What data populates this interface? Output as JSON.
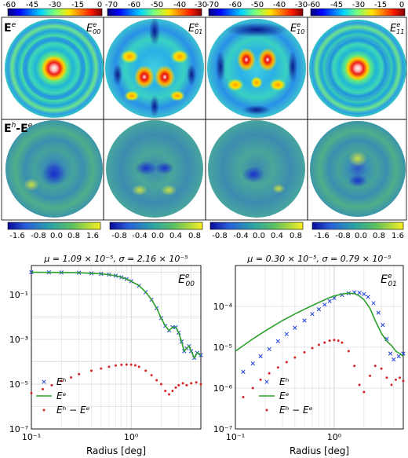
{
  "maps": {
    "top_colorbar_ticks": [
      [
        "-60",
        "-45",
        "-30",
        "-15",
        "0"
      ],
      [
        "-70",
        "-60",
        "-50",
        "-40",
        "-30"
      ],
      [
        "-70",
        "-60",
        "-50",
        "-40",
        "-30"
      ],
      [
        "-60",
        "-45",
        "-30",
        "-15",
        "0"
      ]
    ],
    "bottom_colorbar_ticks": [
      [
        "-1.6",
        "-0.8",
        "0.0",
        "0.8",
        "1.6"
      ],
      [
        "-0.8",
        "-0.4",
        "0.0",
        "0.4",
        "0.8"
      ],
      [
        "-0.8",
        "-0.4",
        "0.0",
        "0.4",
        "0.8"
      ],
      [
        "-1.6",
        "-0.8",
        "0.0",
        "0.8",
        "1.6"
      ]
    ],
    "column_labels": [
      "E00e",
      "E01e",
      "E10e",
      "E11e"
    ],
    "row_labels": {
      "top": "Ee",
      "bottom": "Eh-Ee"
    }
  },
  "chart_data": [
    {
      "type": "scatter",
      "title": "μ = 1.09 × 10⁻⁵, σ = 2.16 × 10⁻⁵",
      "panel_label": "E00e",
      "xlabel": "Radius [deg]",
      "ylabel": "",
      "x_scale": "log",
      "y_scale": "log",
      "xlim": [
        0.1,
        5
      ],
      "ylim": [
        1e-07,
        2
      ],
      "x_ticks": [
        "10⁻¹",
        "10⁰"
      ],
      "y_ticks": [
        "10⁻⁷",
        "10⁻⁵",
        "10⁻³",
        "10⁻¹"
      ],
      "legend": [
        "Eʰ",
        "Eᵉ",
        "Eʰ − Eᵉ"
      ],
      "legend_position": "bottom-left",
      "series": [
        {
          "name": "Eʰ",
          "marker": "x",
          "color": "#1f3fd8",
          "x": [
            0.1,
            0.15,
            0.2,
            0.3,
            0.4,
            0.5,
            0.6,
            0.7,
            0.8,
            0.9,
            1.0,
            1.2,
            1.4,
            1.6,
            1.8,
            2.0,
            2.2,
            2.4,
            2.6,
            2.8,
            3.0,
            3.2,
            3.4,
            3.6,
            3.8,
            4.0,
            4.3,
            4.6,
            5.0
          ],
          "y": [
            1.0,
            0.99,
            0.98,
            0.95,
            0.9,
            0.85,
            0.78,
            0.7,
            0.6,
            0.5,
            0.4,
            0.25,
            0.13,
            0.06,
            0.025,
            0.009,
            0.004,
            0.0025,
            0.0035,
            0.0035,
            0.002,
            0.0008,
            0.0003,
            0.0004,
            0.0005,
            0.0003,
            0.00015,
            0.00025,
            0.0002
          ]
        },
        {
          "name": "Eᵉ",
          "marker": "line",
          "color": "#2ca02c",
          "x": [
            0.1,
            0.15,
            0.2,
            0.3,
            0.4,
            0.5,
            0.6,
            0.7,
            0.8,
            0.9,
            1.0,
            1.2,
            1.4,
            1.6,
            1.8,
            2.0,
            2.2,
            2.4,
            2.6,
            2.8,
            3.0,
            3.2,
            3.4,
            3.6,
            3.8,
            4.0,
            4.3,
            4.6,
            5.0
          ],
          "y": [
            1.0,
            0.99,
            0.98,
            0.95,
            0.9,
            0.85,
            0.78,
            0.7,
            0.6,
            0.5,
            0.4,
            0.25,
            0.13,
            0.06,
            0.025,
            0.009,
            0.004,
            0.0025,
            0.0035,
            0.0035,
            0.002,
            0.0008,
            0.0003,
            0.0004,
            0.0005,
            0.0003,
            0.00015,
            0.00025,
            0.0002
          ]
        },
        {
          "name": "Eʰ − Eᵉ",
          "marker": "dot",
          "color": "#d62728",
          "x": [
            0.1,
            0.13,
            0.16,
            0.2,
            0.25,
            0.3,
            0.4,
            0.5,
            0.6,
            0.7,
            0.8,
            0.9,
            1.0,
            1.1,
            1.2,
            1.4,
            1.6,
            1.8,
            2.0,
            2.2,
            2.4,
            2.6,
            2.8,
            3.0,
            3.3,
            3.6,
            4.0,
            4.5,
            5.0
          ],
          "y": [
            4e-06,
            6e-06,
            9e-06,
            1.4e-05,
            2e-05,
            2.8e-05,
            4e-05,
            5e-05,
            6e-05,
            6.8e-05,
            7.3e-05,
            7.5e-05,
            7.4e-05,
            7e-05,
            6e-05,
            4e-05,
            2.5e-05,
            1.5e-05,
            1e-05,
            5e-06,
            3.5e-06,
            5e-06,
            7e-06,
            9e-06,
            1.1e-05,
            9e-06,
            1.1e-05,
            1.2e-05,
            1e-05
          ]
        }
      ]
    },
    {
      "type": "scatter",
      "title": "μ = 0.30 × 10⁻⁵, σ = 0.79 × 10⁻⁵",
      "panel_label": "E01e",
      "xlabel": "Radius [deg]",
      "ylabel": "",
      "x_scale": "log",
      "y_scale": "log",
      "xlim": [
        0.1,
        5
      ],
      "ylim": [
        1e-07,
        0.001
      ],
      "x_ticks": [
        "10⁻¹",
        "10⁰"
      ],
      "y_ticks": [
        "10⁻⁷",
        "10⁻⁶",
        "10⁻⁵",
        "10⁻⁴"
      ],
      "legend": [
        "Eʰ",
        "Eᵉ",
        "Eʰ − Eᵉ"
      ],
      "legend_position": "bottom-right",
      "series": [
        {
          "name": "Eʰ",
          "marker": "x",
          "color": "#1f3fd8",
          "x": [
            0.12,
            0.15,
            0.18,
            0.22,
            0.27,
            0.33,
            0.4,
            0.5,
            0.6,
            0.7,
            0.8,
            0.9,
            1.0,
            1.2,
            1.4,
            1.6,
            1.8,
            2.0,
            2.2,
            2.5,
            2.8,
            3.1,
            3.4,
            3.7,
            4.0,
            4.5,
            5.0
          ],
          "y": [
            2.5e-06,
            4e-06,
            6e-06,
            9e-06,
            1.4e-05,
            2.1e-05,
            3e-05,
            4.5e-05,
            6.5e-05,
            8.5e-05,
            0.00011,
            0.000135,
            0.00016,
            0.00019,
            0.00021,
            0.00022,
            0.000215,
            0.0002,
            0.00017,
            0.00012,
            7e-05,
            3.5e-05,
            1.6e-05,
            7e-06,
            5e-06,
            6e-06,
            7e-06
          ]
        },
        {
          "name": "Eᵉ",
          "marker": "line",
          "color": "#2ca02c",
          "x": [
            0.1,
            0.15,
            0.2,
            0.3,
            0.4,
            0.5,
            0.6,
            0.7,
            0.8,
            0.9,
            1.0,
            1.2,
            1.4,
            1.6,
            1.8,
            2.0,
            2.3,
            2.6,
            3.0,
            3.4,
            3.8,
            4.2,
            4.6,
            5.0
          ],
          "y": [
            8e-06,
            1.6e-05,
            2.5e-05,
            4.5e-05,
            6.5e-05,
            8.5e-05,
            0.000105,
            0.000125,
            0.000145,
            0.000165,
            0.00018,
            0.0002,
            0.00021,
            0.000205,
            0.00018,
            0.000145,
            9e-05,
            4.5e-05,
            2.2e-05,
            1.4e-05,
            1.1e-05,
            8e-06,
            7e-06,
            6e-06
          ]
        },
        {
          "name": "Eʰ − Eᵉ",
          "marker": "dot",
          "color": "#d62728",
          "x": [
            0.12,
            0.15,
            0.18,
            0.22,
            0.27,
            0.33,
            0.4,
            0.5,
            0.6,
            0.7,
            0.8,
            0.9,
            1.0,
            1.1,
            1.2,
            1.4,
            1.6,
            1.8,
            2.0,
            2.3,
            2.6,
            3.0,
            3.4,
            3.8,
            4.2,
            4.6,
            5.0
          ],
          "y": [
            6e-07,
            1e-06,
            1.6e-06,
            2.3e-06,
            3.2e-06,
            4.3e-06,
            5.6e-06,
            7.5e-06,
            9.5e-06,
            1.15e-05,
            1.3e-05,
            1.45e-05,
            1.5e-05,
            1.45e-05,
            1.3e-05,
            8e-06,
            3.5e-06,
            1.2e-06,
            8e-07,
            2e-06,
            3.5e-06,
            3e-06,
            1.8e-06,
            1.2e-06,
            1.6e-06,
            1.8e-06,
            1.5e-06
          ]
        }
      ]
    }
  ]
}
